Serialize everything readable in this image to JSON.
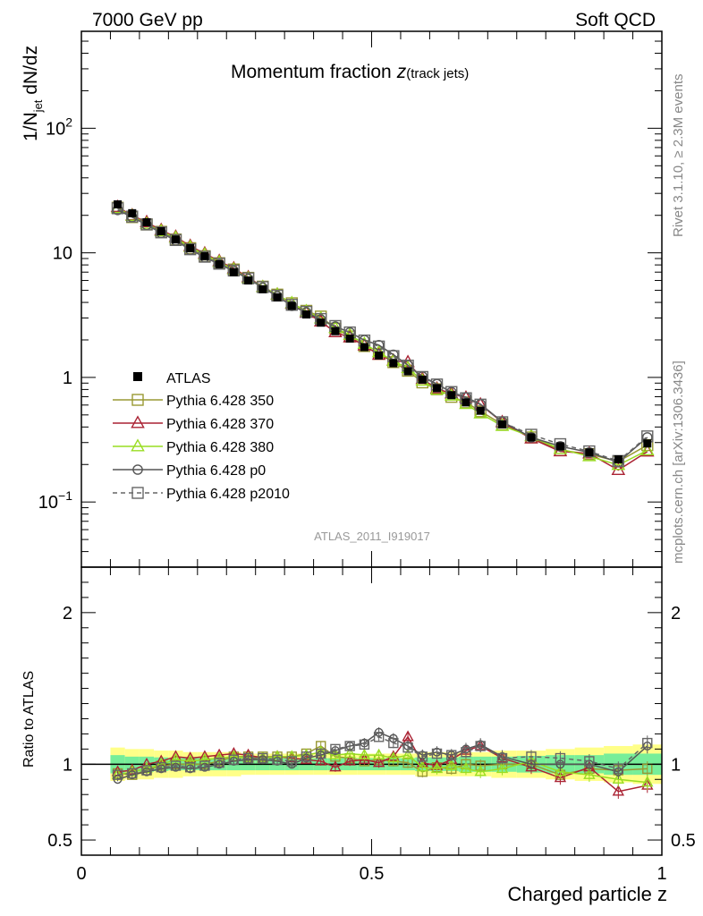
{
  "header": {
    "left": "7000 GeV pp",
    "right": "Soft QCD"
  },
  "chart_data": {
    "type": "line",
    "title": "Momentum fraction",
    "title_symbol": "z",
    "title_sub": "(track jets)",
    "xlabel": "Charged particle z",
    "ylabel_main": "1/N",
    "ylabel_sub": "jet",
    "ylabel_tail": " dN/dz",
    "ratio_ylabel": "Ratio to ATLAS",
    "analysis_id": "ATLAS_2011_I919017",
    "side_label_top": "Rivet 3.1.10, ≥ 2.3M events",
    "side_label_bottom": "mcplots.cern.ch [arXiv:1306.3436]",
    "xlim": [
      0,
      1
    ],
    "ylim": [
      0.03,
      600
    ],
    "yscale": "log",
    "ratio_ylim": [
      0.4,
      2.3
    ],
    "x_ticks": [
      {
        "v": 0,
        "label": "0"
      },
      {
        "v": 0.5,
        "label": "0.5"
      },
      {
        "v": 1,
        "label": "1"
      }
    ],
    "y_ticks": [
      {
        "v": 0.1,
        "base": "10",
        "exp": "−1"
      },
      {
        "v": 1,
        "base": "1",
        "exp": ""
      },
      {
        "v": 10,
        "base": "10",
        "exp": ""
      },
      {
        "v": 100,
        "base": "10",
        "exp": "2"
      }
    ],
    "ratio_ticks": [
      {
        "v": 0.5,
        "label": "0.5"
      },
      {
        "v": 1,
        "label": "1"
      },
      {
        "v": 2,
        "label": "2"
      }
    ],
    "x": [
      0.0625,
      0.0875,
      0.1125,
      0.1375,
      0.1625,
      0.1875,
      0.2125,
      0.2375,
      0.2625,
      0.2875,
      0.3125,
      0.3375,
      0.3625,
      0.3875,
      0.4125,
      0.4375,
      0.4625,
      0.4875,
      0.5125,
      0.5375,
      0.5625,
      0.5875,
      0.6125,
      0.6375,
      0.6625,
      0.6875,
      0.725,
      0.775,
      0.825,
      0.875,
      0.925,
      0.975
    ],
    "data": {
      "name": "ATLAS",
      "values": [
        24.5,
        20.8,
        17.6,
        14.9,
        12.8,
        10.9,
        9.4,
        8.1,
        7.0,
        6.0,
        5.1,
        4.4,
        3.75,
        3.2,
        2.75,
        2.35,
        2.05,
        1.75,
        1.5,
        1.3,
        1.12,
        0.96,
        0.82,
        0.72,
        0.63,
        0.54,
        0.42,
        0.33,
        0.28,
        0.25,
        0.22,
        0.295
      ],
      "band_inner": [
        0.06,
        0.05,
        0.05,
        0.045,
        0.04,
        0.04,
        0.04,
        0.04,
        0.04,
        0.04,
        0.04,
        0.04,
        0.04,
        0.04,
        0.04,
        0.04,
        0.04,
        0.04,
        0.04,
        0.04,
        0.04,
        0.045,
        0.045,
        0.045,
        0.05,
        0.05,
        0.05,
        0.055,
        0.06,
        0.06,
        0.07,
        0.07
      ],
      "band_outer": [
        0.11,
        0.1,
        0.1,
        0.09,
        0.09,
        0.08,
        0.08,
        0.08,
        0.08,
        0.07,
        0.07,
        0.07,
        0.07,
        0.07,
        0.07,
        0.07,
        0.07,
        0.07,
        0.07,
        0.07,
        0.07,
        0.08,
        0.08,
        0.08,
        0.08,
        0.08,
        0.09,
        0.09,
        0.1,
        0.11,
        0.12,
        0.13
      ]
    },
    "series": [
      {
        "name": "Pythia 6.428 350",
        "color": "#999933",
        "marker": "square-open",
        "dash": "",
        "ratio": [
          0.94,
          0.93,
          0.96,
          0.99,
          1.0,
          1.0,
          1.0,
          1.02,
          1.05,
          1.05,
          1.05,
          1.05,
          1.05,
          1.07,
          1.12,
          1.05,
          1.04,
          1.02,
          1.03,
          1.02,
          1.01,
          0.95,
          0.98,
          0.97,
          1.0,
          0.99,
          1.0,
          1.0,
          0.93,
          0.97,
          0.96,
          0.97
        ]
      },
      {
        "name": "Pythia 6.428 370",
        "color": "#aa2233",
        "marker": "triangle-open",
        "dash": "",
        "ratio": [
          0.95,
          0.96,
          1.0,
          1.02,
          1.05,
          1.04,
          1.05,
          1.06,
          1.07,
          1.06,
          1.04,
          1.05,
          1.04,
          1.03,
          1.02,
          0.98,
          1.02,
          1.03,
          1.01,
          1.05,
          1.18,
          1.01,
          0.99,
          1.03,
          1.09,
          1.12,
          1.04,
          0.98,
          0.91,
          0.98,
          0.82,
          0.86
        ]
      },
      {
        "name": "Pythia 6.428 380",
        "color": "#99dd22",
        "marker": "triangle-open",
        "dash": "",
        "ratio": [
          0.93,
          0.95,
          0.97,
          1.0,
          1.03,
          1.02,
          1.03,
          1.04,
          1.05,
          1.04,
          1.04,
          1.05,
          1.05,
          1.06,
          1.08,
          1.06,
          1.07,
          1.06,
          1.06,
          1.04,
          1.06,
          0.98,
          0.97,
          0.99,
          0.97,
          0.95,
          0.97,
          1.02,
          0.95,
          0.93,
          0.9,
          0.88
        ]
      },
      {
        "name": "Pythia 6.428 p0",
        "color": "#555555",
        "marker": "circle-open",
        "dash": "",
        "ratio": [
          0.9,
          0.93,
          0.95,
          0.97,
          0.98,
          0.97,
          0.98,
          1.0,
          1.02,
          1.03,
          1.03,
          1.02,
          1.0,
          1.04,
          1.06,
          1.09,
          1.12,
          1.14,
          1.21,
          1.17,
          1.12,
          1.06,
          1.08,
          1.06,
          1.1,
          1.13,
          1.05,
          1.0,
          1.0,
          1.0,
          0.95,
          1.12
        ]
      },
      {
        "name": "Pythia 6.428 p2010",
        "color": "#666666",
        "marker": "square-open",
        "dash": "5,4",
        "ratio": [
          0.93,
          0.94,
          0.96,
          0.98,
          0.99,
          0.98,
          0.99,
          1.01,
          1.03,
          1.04,
          1.04,
          1.03,
          1.02,
          1.05,
          1.07,
          1.1,
          1.12,
          1.13,
          1.18,
          1.14,
          1.11,
          1.05,
          1.07,
          1.06,
          1.08,
          1.12,
          1.04,
          1.05,
          1.04,
          1.02,
          0.97,
          1.14
        ]
      }
    ]
  }
}
